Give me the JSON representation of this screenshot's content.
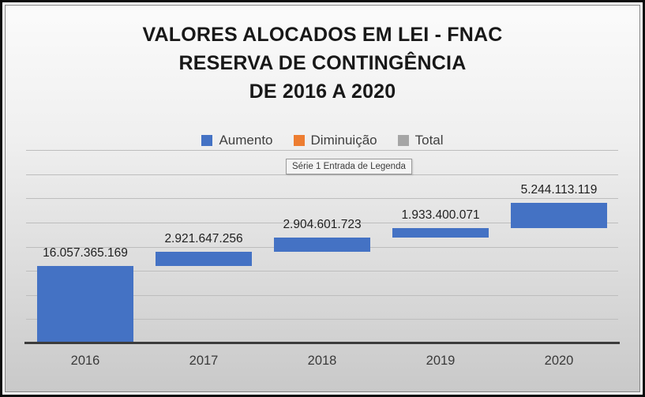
{
  "title": {
    "line1": "VALORES ALOCADOS EM LEI - FNAC",
    "line2": "RESERVA DE CONTINGÊNCIA",
    "line3": "DE 2016 A 2020"
  },
  "legend": {
    "items": [
      {
        "label": "Aumento",
        "color": "#4472C4"
      },
      {
        "label": "Diminuição",
        "color": "#ED7D31"
      },
      {
        "label": "Total",
        "color": "#A5A5A5"
      }
    ]
  },
  "tooltip": {
    "text": "Série 1 Entrada de Legenda"
  },
  "chart_data": {
    "type": "bar",
    "subtype": "waterfall",
    "title": "VALORES ALOCADOS EM LEI - FNAC RESERVA DE CONTINGÊNCIA DE 2016 A 2020",
    "categories": [
      "2016",
      "2017",
      "2018",
      "2019",
      "2020"
    ],
    "series": [
      {
        "name": "Aumento",
        "color": "#4472C4",
        "values": [
          16057365169,
          2921647256,
          2904601723,
          1933400071,
          5244113119
        ]
      }
    ],
    "value_labels": [
      "16.057.365.169",
      "2.921.647.256",
      "2.904.601.723",
      "1.933.400.071",
      "5.244.113.119"
    ],
    "cumulative_totals": [
      16057365169,
      18979012425,
      21883614148,
      23817014219,
      29061127338
    ],
    "legend_entries": [
      "Aumento",
      "Diminuição",
      "Total"
    ],
    "legend_position": "top",
    "grid": true,
    "ylim": [
      0,
      40000000000
    ],
    "gridline_step": 5000000000
  }
}
